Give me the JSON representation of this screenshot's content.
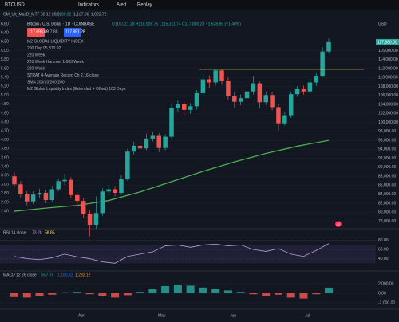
{
  "toolbar": {
    "symbol": "BTCUSD",
    "indicators": "Indicators",
    "alert": "Alert",
    "replay": "Replay"
  },
  "indicator_line": {
    "name": "CM_Ult_MacD_MTF 60 12 26 9",
    "v1": "2,180.82",
    "v2": "1,137.06",
    "v3": "1,023.72"
  },
  "legend": {
    "title": "Bitcoin / U.S. Dollar · 1D · COINBASE",
    "ohlc": "O116,021.28 H118,908.75 L115,311.74 C117,880.28 +1,628.99 (+1.40%)",
    "sell": "117,698.69",
    "spread": "17.88",
    "buy": "117,881.28",
    "items": [
      "M2 GLOBAL LIQUIDITY INDEX",
      "200 Day 95,810.92",
      "220 Week",
      "220 Week Hammer 1,603 Week",
      "220 Week",
      "STRAT 4-Average Record Ch 2.16 close",
      "SMA 200/10/200/200",
      "M2 Global Liquidity Index (Extended + Offset) 103 Days"
    ]
  },
  "left_axis": [
    "6.60",
    "6.40",
    "6.20",
    "6.00",
    "5.80",
    "5.60",
    "5.40",
    "5.20",
    "5.00",
    "4.80",
    "4.60",
    "4.40",
    "4.20",
    "4.00",
    "3.80",
    "3.60",
    "3.40",
    "3.20",
    "3.00",
    "2.80",
    "2.60",
    "2.40"
  ],
  "price_axis": {
    "currency": "USD",
    "last": {
      "value": 117880,
      "label": "117,880.00"
    },
    "ticks": [
      {
        "value": 116000,
        "label": "116,000.00"
      },
      {
        "value": 114000,
        "label": "114,000.00"
      },
      {
        "value": 112000,
        "label": "112,000.00"
      },
      {
        "value": 110000,
        "label": "110,000.00"
      },
      {
        "value": 108000,
        "label": "108,000.00"
      },
      {
        "value": 106000,
        "label": "106,000.00"
      },
      {
        "value": 104000,
        "label": "104,000.00"
      },
      {
        "value": 102000,
        "label": "102,000.00"
      },
      {
        "value": 100000,
        "label": "100,000.00"
      },
      {
        "value": 98000,
        "label": "98,000.00"
      },
      {
        "value": 96000,
        "label": "96,000.00"
      },
      {
        "value": 94000,
        "label": "94,000.00"
      },
      {
        "value": 92000,
        "label": "92,000.00"
      },
      {
        "value": 90000,
        "label": "90,000.00"
      },
      {
        "value": 88000,
        "label": "88,000.00"
      },
      {
        "value": 86000,
        "label": "86,000.00"
      },
      {
        "value": 84000,
        "label": "84,000.00"
      },
      {
        "value": 82000,
        "label": "82,000.00"
      },
      {
        "value": 80000,
        "label": "80,000.00"
      },
      {
        "value": 78000,
        "label": "78,000.00"
      }
    ]
  },
  "candles": [
    [
      88000,
      88900,
      85600,
      86200
    ],
    [
      86200,
      86900,
      83300,
      84000
    ],
    [
      84000,
      84700,
      81500,
      82400
    ],
    [
      82400,
      84600,
      81800,
      83900
    ],
    [
      83900,
      85200,
      83100,
      84300
    ],
    [
      84300,
      84900,
      82000,
      82700
    ],
    [
      82700,
      85800,
      82300,
      85100
    ],
    [
      85100,
      87500,
      84600,
      86900
    ],
    [
      86900,
      88600,
      86100,
      87200
    ],
    [
      87200,
      87800,
      83200,
      83800
    ],
    [
      83800,
      84500,
      81600,
      82500
    ],
    [
      82500,
      83100,
      78800,
      79600
    ],
    [
      79600,
      80400,
      74600,
      77200
    ],
    [
      77200,
      83500,
      76300,
      79800
    ],
    [
      79800,
      85300,
      79200,
      84600
    ],
    [
      84600,
      86200,
      83700,
      85100
    ],
    [
      85100,
      85800,
      83500,
      84300
    ],
    [
      84300,
      88300,
      83900,
      87400
    ],
    [
      87400,
      94100,
      87000,
      93500
    ],
    [
      93500,
      95700,
      92800,
      94800
    ],
    [
      94800,
      95400,
      93100,
      94200
    ],
    [
      94200,
      97500,
      93800,
      96400
    ],
    [
      96400,
      97900,
      95800,
      97000
    ],
    [
      97000,
      97600,
      93400,
      94300
    ],
    [
      94300,
      97400,
      93800,
      96800
    ],
    [
      96800,
      104100,
      96200,
      103200
    ],
    [
      103200,
      104900,
      102300,
      104100
    ],
    [
      104100,
      104700,
      101500,
      102800
    ],
    [
      102800,
      104300,
      101900,
      103600
    ],
    [
      103600,
      107200,
      102900,
      106500
    ],
    [
      106500,
      110800,
      105900,
      109600
    ],
    [
      109600,
      110500,
      107600,
      108900
    ],
    [
      108900,
      111900,
      108200,
      111600
    ],
    [
      111600,
      111800,
      108400,
      109300
    ],
    [
      109300,
      110000,
      104900,
      105800
    ],
    [
      105800,
      106800,
      103200,
      104600
    ],
    [
      104600,
      106200,
      103800,
      105400
    ],
    [
      105400,
      107700,
      104800,
      106900
    ],
    [
      106900,
      110400,
      106200,
      108700
    ],
    [
      108700,
      109100,
      103100,
      104500
    ],
    [
      104500,
      106900,
      103900,
      106100
    ],
    [
      106100,
      106700,
      102700,
      103400
    ],
    [
      103400,
      104100,
      98200,
      99800
    ],
    [
      99800,
      102400,
      99300,
      101600
    ],
    [
      101600,
      106900,
      101000,
      106300
    ],
    [
      106300,
      108100,
      105700,
      107400
    ],
    [
      107400,
      108200,
      106200,
      106900
    ],
    [
      106900,
      109700,
      106400,
      108900
    ],
    [
      108900,
      111000,
      108100,
      110400
    ],
    [
      110400,
      116800,
      110100,
      115800
    ],
    [
      115800,
      118700,
      115400,
      117900
    ]
  ],
  "ma200": [
    80200,
    80900,
    81500,
    82600,
    84500,
    86800,
    89100,
    91200,
    93100,
    94700,
    96000
  ],
  "resistance": 111900,
  "months": [
    "Apr",
    "May",
    "Jun",
    "Jul"
  ],
  "badge": "23",
  "rsi": {
    "label": "RSI 14 close",
    "v1": "73.28",
    "v2": "58.85",
    "ylim": [
      20,
      90
    ],
    "ticks": [
      {
        "value": 80,
        "label": "80.00"
      },
      {
        "value": 60,
        "label": "60.00"
      },
      {
        "value": 40,
        "label": "40.00"
      }
    ],
    "values": [
      45,
      40,
      38,
      42,
      50,
      44,
      40,
      33,
      30,
      45,
      50,
      55,
      68,
      70,
      65,
      70,
      72,
      68,
      70,
      60,
      56,
      62,
      50,
      45,
      58,
      73
    ]
  },
  "macd": {
    "label": "MACD 12 26 close",
    "v1": "557.75",
    "v2": "1,180.82",
    "v3": "1,232.12",
    "ylim": [
      -3000,
      3000
    ],
    "ticks": [
      {
        "value": 2000,
        "label": "2,000.00"
      },
      {
        "value": 0,
        "label": "0.00"
      },
      {
        "value": -2000,
        "label": "-2,000.00"
      }
    ],
    "values": [
      -800,
      -900,
      -600,
      -300,
      200,
      300,
      -200,
      -500,
      -900,
      -400,
      300,
      900,
      1500,
      1800,
      1600,
      1200,
      900,
      600,
      300,
      -200,
      -600,
      -300,
      -900,
      -1100,
      -200,
      1180
    ]
  }
}
